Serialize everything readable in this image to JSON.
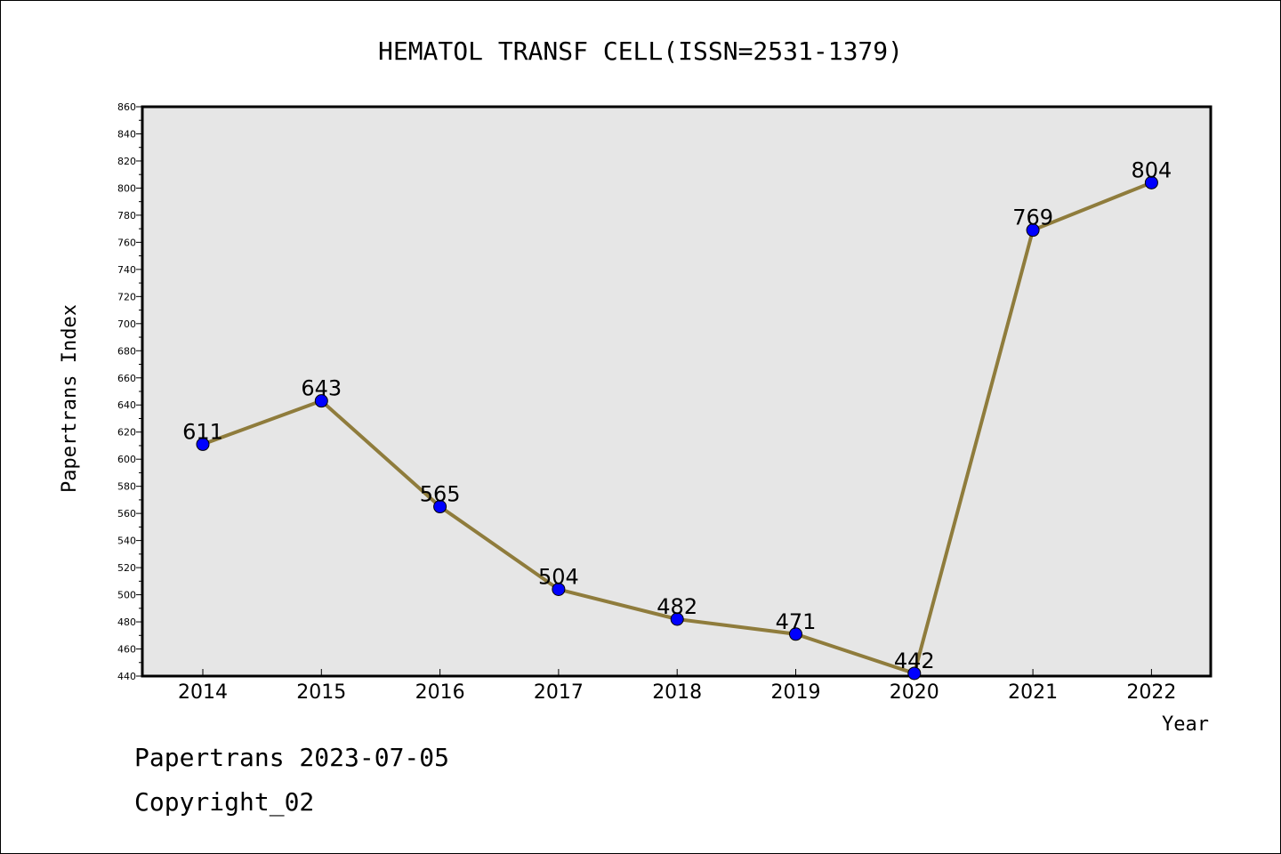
{
  "chart_data": {
    "type": "line",
    "title": "HEMATOL TRANSF CELL(ISSN=2531-1379)",
    "xlabel": "Year",
    "ylabel": "Papertrans Index",
    "categories": [
      "2014",
      "2015",
      "2016",
      "2017",
      "2018",
      "2019",
      "2020",
      "2021",
      "2022"
    ],
    "values": [
      611,
      643,
      565,
      504,
      482,
      471,
      442,
      769,
      804
    ],
    "ylim": [
      440,
      860
    ],
    "ytick_step": 20,
    "grid": false,
    "colors": {
      "line": "#8f7c3c",
      "marker": "#0000ff",
      "plot_bg": "#e6e6e6"
    }
  },
  "footer": {
    "line1": "Papertrans 2023-07-05",
    "line2": "Copyright_02"
  }
}
